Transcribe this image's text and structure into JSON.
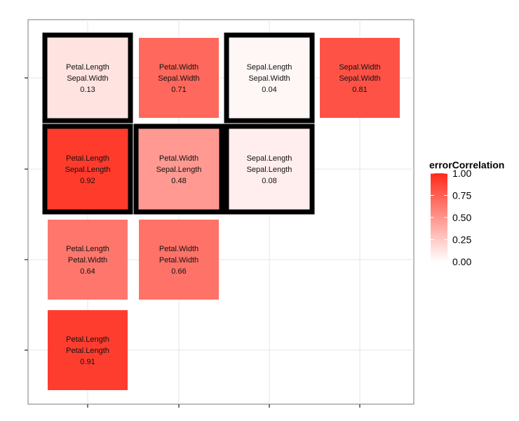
{
  "chart_data": {
    "type": "heatmap",
    "title": "",
    "xlabel": "",
    "ylabel": "",
    "x_columns": 4,
    "y_rows": 4,
    "grid": true,
    "legend": {
      "title": "errorCorrelation",
      "position": "right",
      "range": [
        0,
        1
      ],
      "ticks": [
        "1.00",
        "0.75",
        "0.50",
        "0.25",
        "0.00"
      ],
      "low_color": "#ffffff",
      "high_color": "#ff2a1a"
    },
    "cells": [
      {
        "col": 1,
        "row": 1,
        "line1": "Petal.Length",
        "line2": "Sepal.Width",
        "value": 0.13,
        "label": "0.13",
        "highlighted": true
      },
      {
        "col": 2,
        "row": 1,
        "line1": "Petal.Width",
        "line2": "Sepal.Width",
        "value": 0.71,
        "label": "0.71",
        "highlighted": false
      },
      {
        "col": 3,
        "row": 1,
        "line1": "Sepal.Length",
        "line2": "Sepal.Width",
        "value": 0.04,
        "label": "0.04",
        "highlighted": true
      },
      {
        "col": 4,
        "row": 1,
        "line1": "Sepal.Width",
        "line2": "Sepal.Width",
        "value": 0.81,
        "label": "0.81",
        "highlighted": false
      },
      {
        "col": 1,
        "row": 2,
        "line1": "Petal.Length",
        "line2": "Sepal.Length",
        "value": 0.92,
        "label": "0.92",
        "highlighted": true
      },
      {
        "col": 2,
        "row": 2,
        "line1": "Petal.Width",
        "line2": "Sepal.Length",
        "value": 0.48,
        "label": "0.48",
        "highlighted": true
      },
      {
        "col": 3,
        "row": 2,
        "line1": "Sepal.Length",
        "line2": "Sepal.Length",
        "value": 0.08,
        "label": "0.08",
        "highlighted": true
      },
      {
        "col": 1,
        "row": 3,
        "line1": "Petal.Length",
        "line2": "Petal.Width",
        "value": 0.64,
        "label": "0.64",
        "highlighted": false
      },
      {
        "col": 2,
        "row": 3,
        "line1": "Petal.Width",
        "line2": "Petal.Width",
        "value": 0.66,
        "label": "0.66",
        "highlighted": false
      },
      {
        "col": 1,
        "row": 4,
        "line1": "Petal.Length",
        "line2": "Petal.Length",
        "value": 0.91,
        "label": "0.91",
        "highlighted": false
      }
    ]
  }
}
